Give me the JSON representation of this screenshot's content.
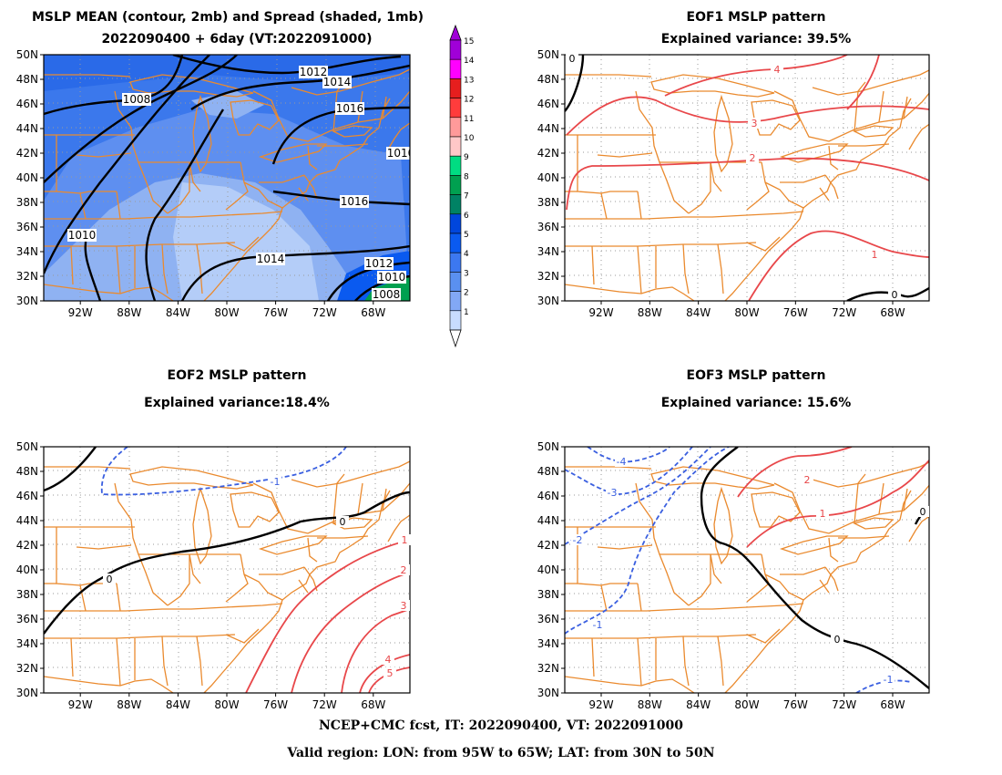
{
  "panels": [
    {
      "title_line1": "MSLP MEAN (contour, 2mb) and Spread (shaded, 1mb)",
      "title_line2": "2022090400 + 6day (VT:2022091000)",
      "contours": [
        {
          "label": "1012",
          "color": "#000000"
        },
        {
          "label": "1014",
          "color": "#000000"
        },
        {
          "label": "1016",
          "color": "#000000"
        },
        {
          "label": "1016",
          "color": "#000000"
        },
        {
          "label": "1014",
          "color": "#000000"
        },
        {
          "label": "1012",
          "color": "#000000"
        },
        {
          "label": "1010",
          "color": "#000000"
        },
        {
          "label": "1008",
          "color": "#000000"
        },
        {
          "label": "1008",
          "color": "#000000"
        },
        {
          "label": "1010",
          "color": "#000000"
        },
        {
          "label": "1010",
          "color": "#000000"
        }
      ]
    },
    {
      "title_line1": "EOF1 MSLP pattern",
      "title_line2": "Explained variance: 39.5%",
      "contours": [
        {
          "label": "4",
          "color": "#e8474a"
        },
        {
          "label": "3",
          "color": "#e8474a"
        },
        {
          "label": "2",
          "color": "#e8474a"
        },
        {
          "label": "1",
          "color": "#e8474a"
        },
        {
          "label": "0",
          "color": "#000000"
        },
        {
          "label": "0",
          "color": "#000000"
        }
      ]
    },
    {
      "title_line1": "EOF2 MSLP pattern",
      "title_line2": "Explained variance:18.4%",
      "contours": [
        {
          "label": "-1",
          "color": "#3a5fe0"
        },
        {
          "label": "0",
          "color": "#000000"
        },
        {
          "label": "0",
          "color": "#000000"
        },
        {
          "label": "1",
          "color": "#e8474a"
        },
        {
          "label": "2",
          "color": "#e8474a"
        },
        {
          "label": "3",
          "color": "#e8474a"
        },
        {
          "label": "4",
          "color": "#e8474a"
        },
        {
          "label": "5",
          "color": "#e8474a"
        }
      ]
    },
    {
      "title_line1": "EOF3 MSLP pattern",
      "title_line2": "Explained variance: 15.6%",
      "contours": [
        {
          "label": "-4",
          "color": "#3a5fe0"
        },
        {
          "label": "-3",
          "color": "#3a5fe0"
        },
        {
          "label": "-2",
          "color": "#3a5fe0"
        },
        {
          "label": "-1",
          "color": "#3a5fe0"
        },
        {
          "label": "-1",
          "color": "#3a5fe0"
        },
        {
          "label": "0",
          "color": "#000000"
        },
        {
          "label": "0",
          "color": "#000000"
        },
        {
          "label": "1",
          "color": "#e8474a"
        },
        {
          "label": "2",
          "color": "#e8474a"
        }
      ]
    }
  ],
  "lat_labels": [
    "50N",
    "48N",
    "46N",
    "44N",
    "42N",
    "40N",
    "38N",
    "36N",
    "34N",
    "32N",
    "30N"
  ],
  "lon_labels": [
    "92W",
    "88W",
    "84W",
    "80W",
    "76W",
    "72W",
    "68W"
  ],
  "colorbar": {
    "levels": [
      "15",
      "14",
      "13",
      "12",
      "11",
      "10",
      "9",
      "8",
      "7",
      "6",
      "5",
      "4",
      "3",
      "2",
      "1"
    ],
    "colors": [
      "#a000d8",
      "#ff00ff",
      "#e61e1e",
      "#ff3c3c",
      "#ff9a9a",
      "#ffc8c8",
      "#00dc82",
      "#00a050",
      "#008264",
      "#0046dc",
      "#0a5af0",
      "#3c78f0",
      "#5a90f0",
      "#82a8f5",
      "#c8dcff"
    ]
  },
  "colors": {
    "coast": "#ea8a2e",
    "grid": "#9a9a9a",
    "spread_low": "#b4cdf8",
    "spread_mid": "#8fb2f2",
    "spread_high": "#5e8ff0",
    "spread_max": "#2a6ae8",
    "spread_hot": "#00a050"
  },
  "footer": {
    "line1": "NCEP+CMC fcst, IT: 2022090400, VT: 2022091000",
    "line2": "Valid region: LON: from 95W to 65W; LAT: from 30N to 50N"
  }
}
